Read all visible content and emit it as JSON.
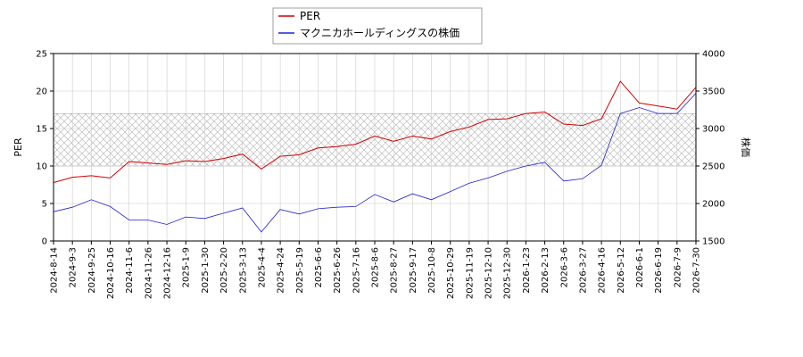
{
  "chart_data": {
    "type": "line",
    "title": "",
    "ylabel_left": "PER",
    "ylabel_right": "株価",
    "ylim_left": [
      0,
      25
    ],
    "ylim_right": [
      1500,
      4000
    ],
    "yticks_left": [
      "0",
      "5",
      "10",
      "15",
      "20",
      "25"
    ],
    "yticks_right": [
      "1500",
      "2000",
      "2500",
      "3000",
      "3500",
      "4000"
    ],
    "band_left": [
      10,
      17
    ],
    "grid": true,
    "legend_position": "top-center",
    "x_dates": [
      "2024-8-14",
      "2024-9-3",
      "2024-9-25",
      "2024-10-16",
      "2024-11-6",
      "2024-11-26",
      "2024-12-16",
      "2025-1-9",
      "2025-1-30",
      "2025-2-20",
      "2025-3-13",
      "2025-4-4",
      "2025-4-24",
      "2025-5-19",
      "2025-6-6",
      "2025-6-26",
      "2025-7-16",
      "2025-8-6",
      "2025-8-27",
      "2025-9-17",
      "2025-10-8",
      "2025-10-29",
      "2025-11-19",
      "2025-12-10",
      "2025-12-30",
      "2026-1-23",
      "2026-2-13",
      "2026-3-6",
      "2026-3-27",
      "2026-4-16",
      "2026-5-12",
      "2026-6-1",
      "2026-6-19",
      "2026-7-9",
      "2026-7-30"
    ],
    "series": [
      {
        "name": "PER",
        "color": "#d00000",
        "axis": "left",
        "values": [
          7.8,
          8.5,
          8.7,
          8.4,
          10.6,
          10.4,
          10.2,
          10.7,
          10.6,
          11.0,
          11.6,
          9.6,
          11.3,
          11.5,
          12.4,
          12.6,
          12.9,
          14.0,
          13.3,
          14.0,
          13.6,
          14.6,
          15.2,
          16.2,
          16.3,
          17.0,
          17.2,
          15.6,
          15.4,
          16.3,
          21.3,
          18.4,
          18.0,
          17.6,
          20.5
        ]
      },
      {
        "name": "マクニカホールディングスの株価",
        "color": "#2020d0",
        "axis": "right",
        "values": [
          1890,
          1950,
          2050,
          1960,
          1780,
          1780,
          1720,
          1820,
          1800,
          1870,
          1940,
          1620,
          1920,
          1860,
          1930,
          1950,
          1960,
          2120,
          2020,
          2130,
          2050,
          2160,
          2270,
          2340,
          2430,
          2500,
          2550,
          2300,
          2330,
          2510,
          3200,
          3280,
          3200,
          3200,
          3470
        ]
      }
    ]
  }
}
